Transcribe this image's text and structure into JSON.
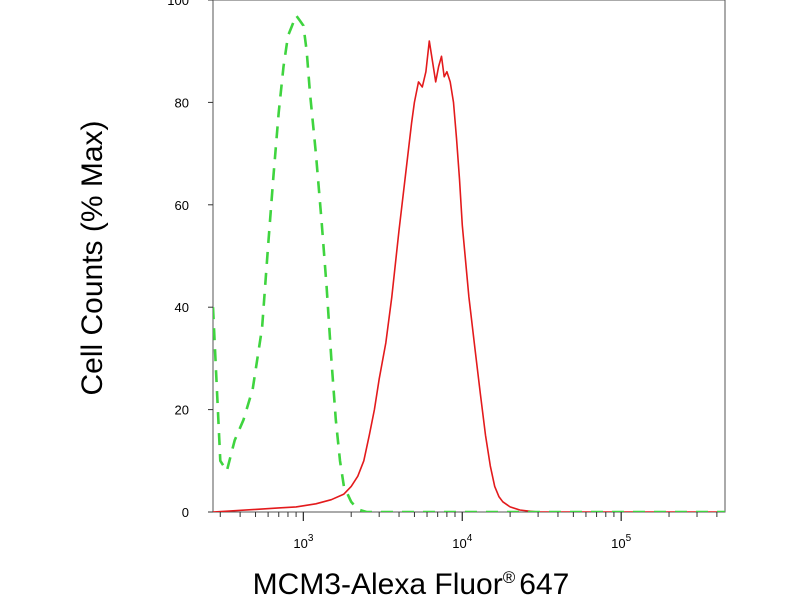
{
  "chart_data": {
    "type": "line",
    "title": "",
    "xlabel": "MCM3-Alexa Fluor",
    "xlabel_mark": "®",
    "xlabel_suffix": "647",
    "ylabel": "Cell Counts (% Max)",
    "x_scale": "log",
    "xlim": [
      270,
      450000
    ],
    "ylim": [
      0,
      100
    ],
    "y_ticks": [
      0,
      20,
      40,
      60,
      80,
      100
    ],
    "x_major_ticks": [
      {
        "value": 1000,
        "base": "10",
        "exp": "3"
      },
      {
        "value": 10000,
        "base": "10",
        "exp": "4"
      },
      {
        "value": 100000,
        "base": "10",
        "exp": "5"
      }
    ],
    "grid": false,
    "series": [
      {
        "color": "#e31a1c",
        "style": "solid",
        "x": [
          270,
          500,
          700,
          900,
          1200,
          1500,
          1800,
          2000,
          2200,
          2400,
          2600,
          2800,
          3000,
          3300,
          3600,
          4000,
          4400,
          4800,
          5000,
          5300,
          5600,
          5900,
          6200,
          6500,
          6800,
          7100,
          7400,
          7700,
          8000,
          8400,
          8800,
          9200,
          9600,
          10000,
          11000,
          12000,
          13000,
          14000,
          15000,
          16000,
          17000,
          18000,
          20000,
          23000,
          26000,
          30000,
          40000,
          100000,
          450000
        ],
        "y": [
          0,
          0.5,
          0.8,
          1,
          1.6,
          2.4,
          3.5,
          5,
          7,
          10,
          15,
          20,
          26,
          33,
          42,
          55,
          66,
          76,
          80,
          84,
          83,
          86,
          92,
          88,
          84,
          87,
          89,
          85,
          86,
          84,
          80,
          73,
          65,
          56,
          42,
          32,
          23,
          15,
          9,
          5,
          3,
          2,
          1,
          0.4,
          0.2,
          0,
          0,
          0,
          0
        ]
      },
      {
        "color": "#3fd43f",
        "style": "dashed",
        "x": [
          270,
          300,
          330,
          370,
          420,
          480,
          550,
          600,
          650,
          700,
          750,
          800,
          850,
          900,
          950,
          1000,
          1050,
          1100,
          1200,
          1300,
          1400,
          1500,
          1600,
          1700,
          1800,
          2000,
          2200,
          2500,
          3000,
          5000,
          20000,
          450000
        ],
        "y": [
          40,
          10,
          8,
          14,
          18,
          24,
          36,
          52,
          66,
          78,
          87,
          93,
          95,
          97,
          96,
          95,
          90,
          82,
          70,
          57,
          44,
          30,
          18,
          10,
          5,
          2,
          0.5,
          0,
          0,
          0,
          0,
          0
        ]
      }
    ]
  }
}
